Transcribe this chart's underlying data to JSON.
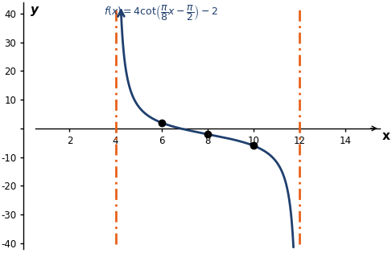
{
  "xlabel": "x",
  "ylabel": "y",
  "xlim": [
    0.5,
    15.5
  ],
  "ylim": [
    -42,
    44
  ],
  "xticks": [
    2,
    4,
    6,
    8,
    10,
    12,
    14
  ],
  "yticks": [
    -40,
    -30,
    -20,
    -10,
    0,
    10,
    20,
    30,
    40
  ],
  "asymptotes": [
    4,
    12
  ],
  "asymptote_color": "#E8611A",
  "curve_color": "#1F3F6E",
  "dot_color": "black",
  "dot_points": [
    [
      6,
      2
    ],
    [
      8,
      -2
    ],
    [
      10,
      -6
    ]
  ],
  "background_color": "#ffffff",
  "formula": "f(x) = 4\\cot\\!\\left(\\dfrac{\\pi}{8}x - \\dfrac{\\pi}{2}\\right) - 2"
}
